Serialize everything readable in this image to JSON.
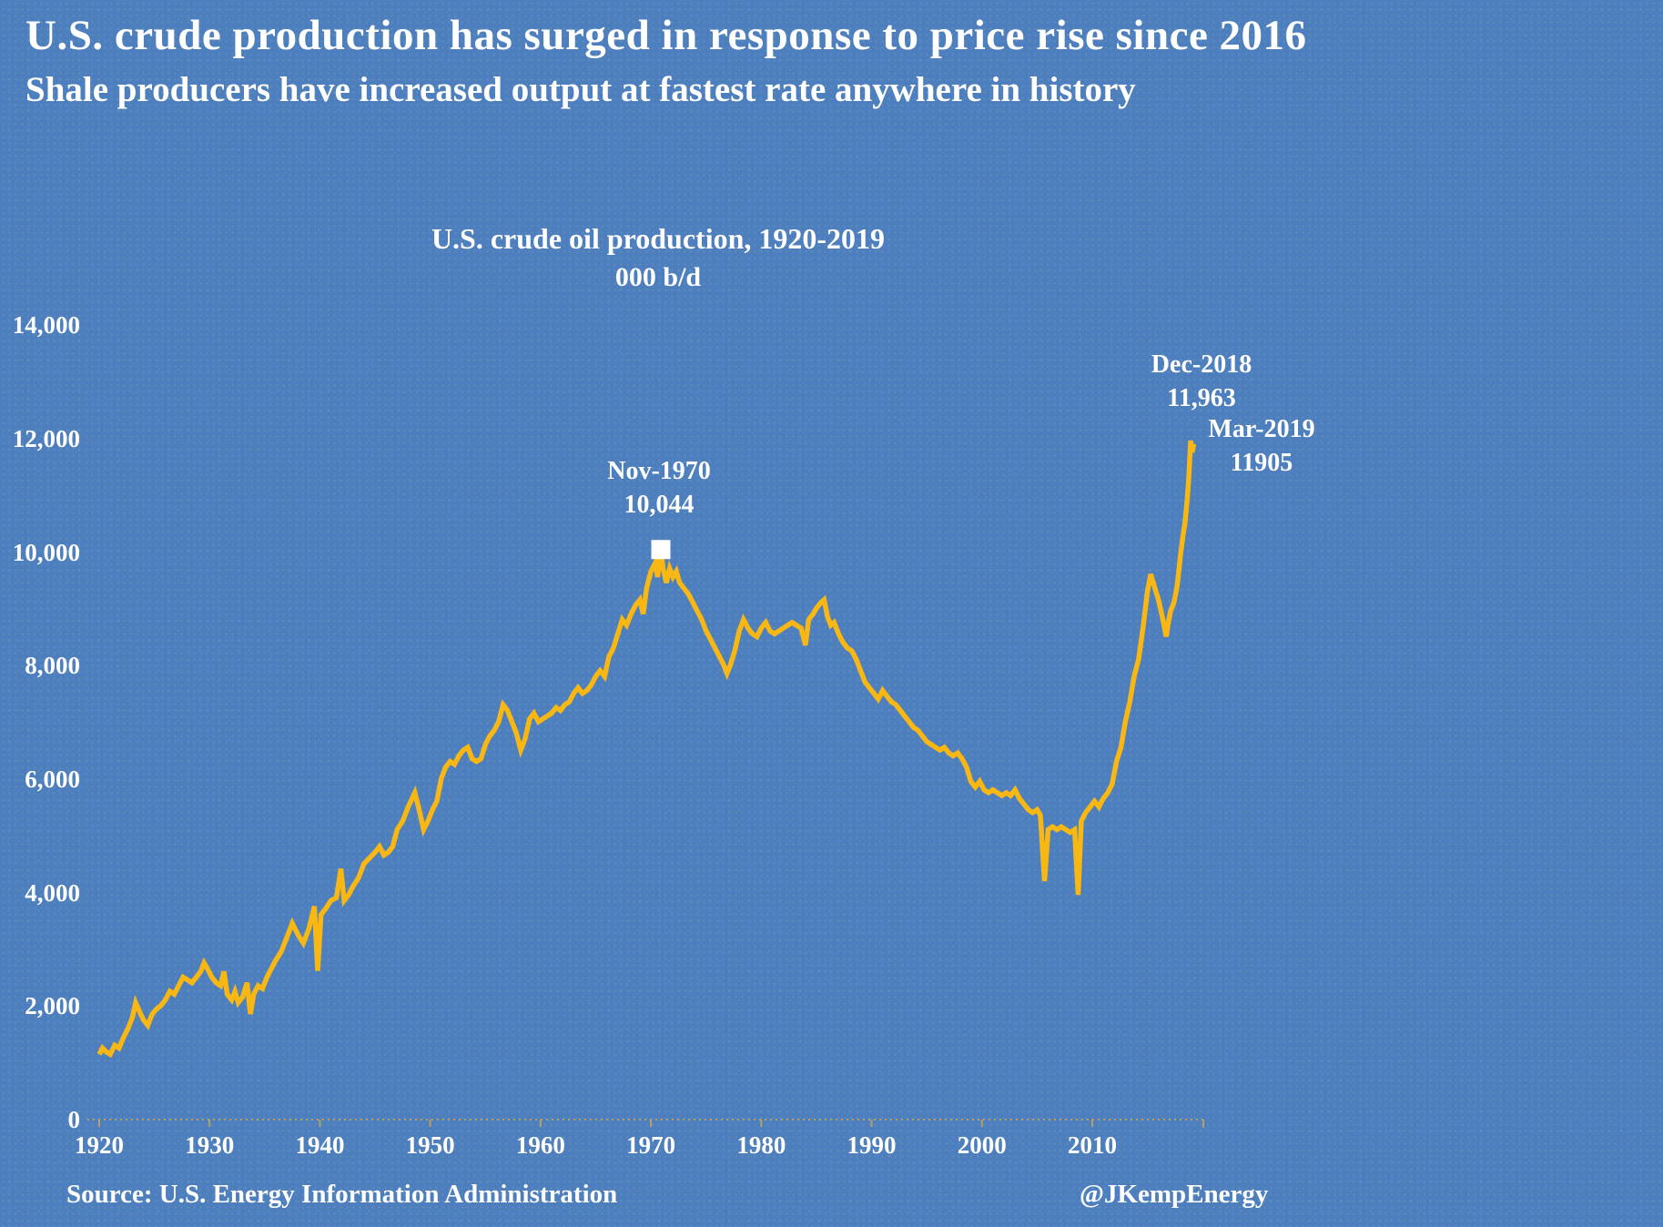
{
  "page": {
    "title": "U.S. crude production has surged in response to price rise since 2016",
    "subtitle": "Shale producers have increased output at fastest rate anywhere in history",
    "source": "Source: U.S. Energy Information Administration",
    "credit": "@JKempEnergy"
  },
  "chart_data": {
    "type": "line",
    "title": "U.S. crude oil production, 1920-2019",
    "units_label": "000 b/d",
    "xlabel": "",
    "ylabel": "000 b/d",
    "xlim": [
      1919.5,
      2020.5
    ],
    "ylim": [
      0,
      14000
    ],
    "grid": "off",
    "legend": "none",
    "background_color": "#4D7EBD",
    "line_color": "#F9B713",
    "axis_dot_color": "#C9A552",
    "text_color": "#FFFFFF",
    "y_ticks": [
      {
        "v": 14000,
        "label": "14,000"
      },
      {
        "v": 12000,
        "label": "12,000"
      },
      {
        "v": 10000,
        "label": "10,000"
      },
      {
        "v": 8000,
        "label": "8,000"
      },
      {
        "v": 6000,
        "label": "6,000"
      },
      {
        "v": 4000,
        "label": "4,000"
      },
      {
        "v": 2000,
        "label": "2,000"
      },
      {
        "v": 0,
        "label": "0"
      }
    ],
    "x_ticks": [
      {
        "v": 1920,
        "label": "1920"
      },
      {
        "v": 1930,
        "label": "1930"
      },
      {
        "v": 1940,
        "label": "1940"
      },
      {
        "v": 1950,
        "label": "1950"
      },
      {
        "v": 1960,
        "label": "1960"
      },
      {
        "v": 1970,
        "label": "1970"
      },
      {
        "v": 1980,
        "label": "1980"
      },
      {
        "v": 1990,
        "label": "1990"
      },
      {
        "v": 2000,
        "label": "2000"
      },
      {
        "v": 2010,
        "label": "2010"
      }
    ],
    "annotations": [
      {
        "id": "nov1970",
        "line1": "Nov-1970",
        "line2": "10,044",
        "x": 1970.9,
        "y": 10044,
        "marker": "white-square"
      },
      {
        "id": "dec2018",
        "line1": "Dec-2018",
        "line2": "11,963",
        "x": 2018.92,
        "y": 11963,
        "marker": "none"
      },
      {
        "id": "mar2019",
        "line1": "Mar-2019",
        "line2": "11905",
        "x": 2019.2,
        "y": 11905,
        "marker": "none"
      }
    ],
    "series": [
      {
        "name": "U.S. crude oil production (000 b/d)",
        "points": [
          [
            1920.0,
            1150
          ],
          [
            1920.3,
            1260
          ],
          [
            1920.6,
            1200
          ],
          [
            1921.0,
            1150
          ],
          [
            1921.4,
            1310
          ],
          [
            1921.8,
            1260
          ],
          [
            1922.2,
            1450
          ],
          [
            1922.6,
            1600
          ],
          [
            1923.0,
            1800
          ],
          [
            1923.3,
            2060
          ],
          [
            1923.6,
            1930
          ],
          [
            1924.0,
            1760
          ],
          [
            1924.4,
            1660
          ],
          [
            1924.8,
            1860
          ],
          [
            1925.2,
            1950
          ],
          [
            1925.6,
            2010
          ],
          [
            1926.0,
            2110
          ],
          [
            1926.4,
            2260
          ],
          [
            1926.8,
            2210
          ],
          [
            1927.2,
            2360
          ],
          [
            1927.6,
            2510
          ],
          [
            1928.0,
            2460
          ],
          [
            1928.4,
            2410
          ],
          [
            1928.8,
            2510
          ],
          [
            1929.2,
            2610
          ],
          [
            1929.5,
            2760
          ],
          [
            1929.8,
            2660
          ],
          [
            1930.2,
            2510
          ],
          [
            1930.6,
            2410
          ],
          [
            1931.0,
            2360
          ],
          [
            1931.3,
            2610
          ],
          [
            1931.6,
            2210
          ],
          [
            1932.0,
            2110
          ],
          [
            1932.3,
            2260
          ],
          [
            1932.6,
            2060
          ],
          [
            1933.0,
            2160
          ],
          [
            1933.4,
            2410
          ],
          [
            1933.7,
            1860
          ],
          [
            1934.0,
            2210
          ],
          [
            1934.4,
            2360
          ],
          [
            1934.8,
            2310
          ],
          [
            1935.2,
            2510
          ],
          [
            1935.6,
            2660
          ],
          [
            1936.0,
            2810
          ],
          [
            1936.5,
            2960
          ],
          [
            1937.0,
            3210
          ],
          [
            1937.5,
            3460
          ],
          [
            1938.0,
            3260
          ],
          [
            1938.5,
            3110
          ],
          [
            1939.0,
            3360
          ],
          [
            1939.5,
            3760
          ],
          [
            1939.8,
            2620
          ],
          [
            1940.1,
            3610
          ],
          [
            1940.5,
            3710
          ],
          [
            1941.0,
            3860
          ],
          [
            1941.5,
            3910
          ],
          [
            1941.9,
            4420
          ],
          [
            1942.2,
            3860
          ],
          [
            1942.6,
            3960
          ],
          [
            1943.0,
            4110
          ],
          [
            1943.5,
            4260
          ],
          [
            1944.0,
            4510
          ],
          [
            1944.5,
            4610
          ],
          [
            1945.0,
            4710
          ],
          [
            1945.4,
            4810
          ],
          [
            1945.8,
            4660
          ],
          [
            1946.2,
            4710
          ],
          [
            1946.6,
            4810
          ],
          [
            1947.0,
            5110
          ],
          [
            1947.5,
            5260
          ],
          [
            1948.0,
            5510
          ],
          [
            1948.6,
            5760
          ],
          [
            1949.0,
            5460
          ],
          [
            1949.4,
            5110
          ],
          [
            1949.8,
            5260
          ],
          [
            1950.2,
            5460
          ],
          [
            1950.6,
            5610
          ],
          [
            1951.0,
            6010
          ],
          [
            1951.4,
            6210
          ],
          [
            1951.8,
            6310
          ],
          [
            1952.2,
            6260
          ],
          [
            1952.6,
            6410
          ],
          [
            1953.0,
            6510
          ],
          [
            1953.4,
            6560
          ],
          [
            1953.8,
            6360
          ],
          [
            1954.2,
            6310
          ],
          [
            1954.6,
            6360
          ],
          [
            1955.0,
            6610
          ],
          [
            1955.4,
            6760
          ],
          [
            1955.8,
            6860
          ],
          [
            1956.2,
            7010
          ],
          [
            1956.6,
            7310
          ],
          [
            1957.0,
            7210
          ],
          [
            1957.4,
            7010
          ],
          [
            1957.8,
            6810
          ],
          [
            1958.2,
            6510
          ],
          [
            1958.6,
            6710
          ],
          [
            1959.0,
            7060
          ],
          [
            1959.4,
            7160
          ],
          [
            1959.8,
            7010
          ],
          [
            1960.2,
            7060
          ],
          [
            1960.6,
            7110
          ],
          [
            1961.0,
            7160
          ],
          [
            1961.4,
            7260
          ],
          [
            1961.8,
            7210
          ],
          [
            1962.2,
            7310
          ],
          [
            1962.6,
            7360
          ],
          [
            1963.0,
            7510
          ],
          [
            1963.4,
            7610
          ],
          [
            1963.8,
            7510
          ],
          [
            1964.2,
            7560
          ],
          [
            1964.6,
            7660
          ],
          [
            1965.0,
            7810
          ],
          [
            1965.4,
            7910
          ],
          [
            1965.8,
            7810
          ],
          [
            1966.2,
            8160
          ],
          [
            1966.6,
            8310
          ],
          [
            1967.0,
            8560
          ],
          [
            1967.4,
            8810
          ],
          [
            1967.8,
            8710
          ],
          [
            1968.2,
            8910
          ],
          [
            1968.6,
            9060
          ],
          [
            1969.0,
            9160
          ],
          [
            1969.3,
            8910
          ],
          [
            1969.6,
            9360
          ],
          [
            1970.0,
            9660
          ],
          [
            1970.4,
            9810
          ],
          [
            1970.6,
            9560
          ],
          [
            1970.9,
            10044
          ],
          [
            1971.1,
            9710
          ],
          [
            1971.4,
            9460
          ],
          [
            1971.7,
            9710
          ],
          [
            1972.0,
            9560
          ],
          [
            1972.3,
            9660
          ],
          [
            1972.6,
            9460
          ],
          [
            1973.0,
            9360
          ],
          [
            1973.4,
            9260
          ],
          [
            1973.8,
            9110
          ],
          [
            1974.2,
            8960
          ],
          [
            1974.6,
            8810
          ],
          [
            1975.0,
            8610
          ],
          [
            1975.4,
            8460
          ],
          [
            1975.8,
            8310
          ],
          [
            1976.2,
            8160
          ],
          [
            1976.6,
            8010
          ],
          [
            1976.9,
            7860
          ],
          [
            1977.2,
            8010
          ],
          [
            1977.6,
            8260
          ],
          [
            1978.0,
            8610
          ],
          [
            1978.4,
            8810
          ],
          [
            1978.8,
            8660
          ],
          [
            1979.2,
            8560
          ],
          [
            1979.6,
            8510
          ],
          [
            1980.0,
            8660
          ],
          [
            1980.4,
            8760
          ],
          [
            1980.8,
            8610
          ],
          [
            1981.2,
            8560
          ],
          [
            1981.6,
            8610
          ],
          [
            1982.0,
            8660
          ],
          [
            1982.4,
            8710
          ],
          [
            1982.8,
            8760
          ],
          [
            1983.2,
            8710
          ],
          [
            1983.6,
            8660
          ],
          [
            1984.0,
            8360
          ],
          [
            1984.3,
            8810
          ],
          [
            1984.7,
            8910
          ],
          [
            1985.0,
            9010
          ],
          [
            1985.4,
            9110
          ],
          [
            1985.7,
            9160
          ],
          [
            1986.0,
            8860
          ],
          [
            1986.3,
            8710
          ],
          [
            1986.6,
            8760
          ],
          [
            1987.0,
            8560
          ],
          [
            1987.4,
            8410
          ],
          [
            1987.8,
            8310
          ],
          [
            1988.2,
            8260
          ],
          [
            1988.6,
            8110
          ],
          [
            1989.0,
            7910
          ],
          [
            1989.4,
            7710
          ],
          [
            1989.8,
            7610
          ],
          [
            1990.2,
            7510
          ],
          [
            1990.6,
            7410
          ],
          [
            1991.0,
            7560
          ],
          [
            1991.4,
            7460
          ],
          [
            1991.8,
            7360
          ],
          [
            1992.2,
            7310
          ],
          [
            1992.6,
            7210
          ],
          [
            1993.0,
            7110
          ],
          [
            1993.4,
            7010
          ],
          [
            1993.8,
            6910
          ],
          [
            1994.2,
            6860
          ],
          [
            1994.6,
            6760
          ],
          [
            1995.0,
            6660
          ],
          [
            1995.4,
            6610
          ],
          [
            1995.8,
            6560
          ],
          [
            1996.2,
            6510
          ],
          [
            1996.6,
            6560
          ],
          [
            1997.0,
            6460
          ],
          [
            1997.4,
            6410
          ],
          [
            1997.8,
            6460
          ],
          [
            1998.2,
            6360
          ],
          [
            1998.6,
            6210
          ],
          [
            1999.0,
            5960
          ],
          [
            1999.4,
            5860
          ],
          [
            1999.8,
            5960
          ],
          [
            2000.2,
            5810
          ],
          [
            2000.6,
            5760
          ],
          [
            2001.0,
            5810
          ],
          [
            2001.4,
            5760
          ],
          [
            2001.8,
            5710
          ],
          [
            2002.2,
            5760
          ],
          [
            2002.6,
            5710
          ],
          [
            2003.0,
            5810
          ],
          [
            2003.4,
            5660
          ],
          [
            2003.8,
            5560
          ],
          [
            2004.2,
            5460
          ],
          [
            2004.6,
            5410
          ],
          [
            2005.0,
            5460
          ],
          [
            2005.3,
            5360
          ],
          [
            2005.67,
            4200
          ],
          [
            2006.0,
            5110
          ],
          [
            2006.4,
            5160
          ],
          [
            2006.8,
            5110
          ],
          [
            2007.2,
            5160
          ],
          [
            2007.6,
            5110
          ],
          [
            2008.0,
            5060
          ],
          [
            2008.4,
            5110
          ],
          [
            2008.72,
            3960
          ],
          [
            2009.0,
            5260
          ],
          [
            2009.4,
            5410
          ],
          [
            2009.8,
            5510
          ],
          [
            2010.2,
            5610
          ],
          [
            2010.6,
            5510
          ],
          [
            2011.0,
            5660
          ],
          [
            2011.4,
            5760
          ],
          [
            2011.8,
            5910
          ],
          [
            2012.2,
            6310
          ],
          [
            2012.6,
            6560
          ],
          [
            2013.0,
            7010
          ],
          [
            2013.4,
            7360
          ],
          [
            2013.8,
            7810
          ],
          [
            2014.2,
            8110
          ],
          [
            2014.6,
            8660
          ],
          [
            2015.0,
            9310
          ],
          [
            2015.3,
            9610
          ],
          [
            2015.6,
            9410
          ],
          [
            2016.0,
            9160
          ],
          [
            2016.4,
            8810
          ],
          [
            2016.7,
            8510
          ],
          [
            2016.9,
            8760
          ],
          [
            2017.1,
            8960
          ],
          [
            2017.4,
            9110
          ],
          [
            2017.7,
            9410
          ],
          [
            2018.0,
            9960
          ],
          [
            2018.2,
            10260
          ],
          [
            2018.4,
            10510
          ],
          [
            2018.6,
            10910
          ],
          [
            2018.75,
            11310
          ],
          [
            2018.92,
            11963
          ],
          [
            2019.05,
            11760
          ],
          [
            2019.2,
            11905
          ]
        ]
      }
    ]
  }
}
